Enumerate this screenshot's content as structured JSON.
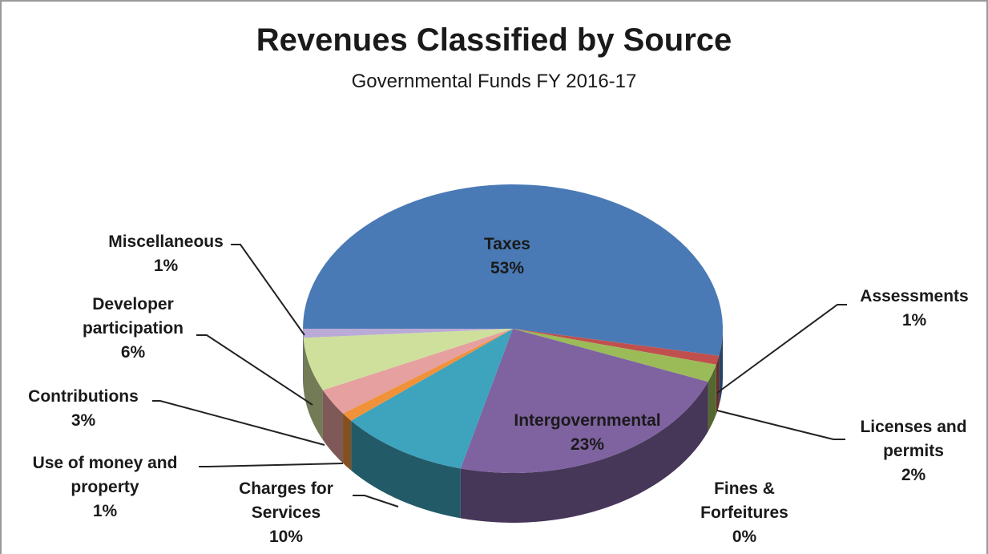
{
  "chart_data": {
    "type": "pie3d",
    "title": "Revenues Classified by Source",
    "subtitle": "Governmental Funds FY 2016-17",
    "categories": [
      "Taxes",
      "Assessments",
      "Licenses and permits",
      "Intergovernmental",
      "Fines & Forfeitures",
      "Charges for Services",
      "Use of money and property",
      "Contributions",
      "Developer participation",
      "Miscellaneous"
    ],
    "values": [
      53,
      1,
      2,
      23,
      0,
      10,
      1,
      3,
      6,
      1
    ],
    "value_labels": [
      "53%",
      "1%",
      "2%",
      "23%",
      "0%",
      "10%",
      "1%",
      "3%",
      "6%",
      "1%"
    ],
    "colors": [
      "#4a7ab5",
      "#c0504d",
      "#9bbb59",
      "#7f62a0",
      "#4bacc6",
      "#3ea3bd",
      "#f0923a",
      "#e6a0a0",
      "#cfe09c",
      "#b9abd6"
    ]
  }
}
